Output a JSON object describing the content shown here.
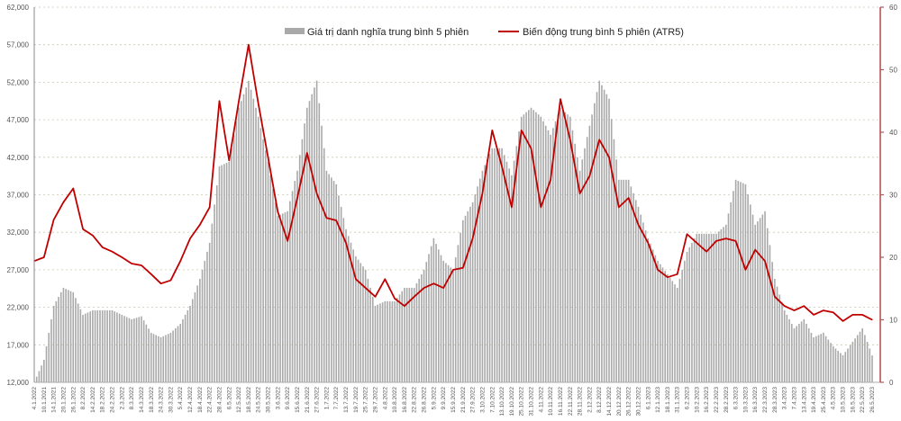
{
  "chart_data": {
    "type": "bar+line",
    "title": "",
    "legend": {
      "position": "top-center",
      "bar_label": "Giá trị danh nghĩa trung bình 5 phiên",
      "line_label": "Biến động trung bình 5 phiên (ATR5)"
    },
    "colors": {
      "bar": "#a9a9a9",
      "line": "#c00000",
      "right_axis": "#b5545a",
      "grid": "#c9c9b0"
    },
    "y_left": {
      "min": 12000,
      "max": 62000,
      "step": 5000,
      "ticks": [
        "12,000",
        "17,000",
        "22,000",
        "27,000",
        "32,000",
        "37,000",
        "42,000",
        "47,000",
        "52,000",
        "57,000",
        "62,000"
      ]
    },
    "y_right": {
      "min": 0,
      "max": 60,
      "step": 10,
      "ticks": [
        "0",
        "10",
        "20",
        "30",
        "40",
        "50",
        "60"
      ]
    },
    "grid": true,
    "categories": [
      "4.1.2022",
      "10.1.2021",
      "14.1.2021",
      "20.1.2022",
      "26.1.2022",
      "8.2.2022",
      "14.2.2022",
      "18.2.2022",
      "24.2.2022",
      "2.3.2022",
      "8.3.2022",
      "14.3.2022",
      "18.3.2022",
      "24.3.2022",
      "30.3.2022",
      "5.4.2022",
      "12.4.2022",
      "18.4.2022",
      "22.4.2022",
      "28.4.2022",
      "6.5.2022",
      "12.5.2022",
      "18.5.2022",
      "24.5.2022",
      "30.5.2022",
      "3.6.2022",
      "9.6.2022",
      "15.6.2022",
      "21.6.2022",
      "27.6.2022",
      "1.7.2022",
      "7.7.2022",
      "13.7.2022",
      "19.7.2022",
      "25.7.2022",
      "29.7.2022",
      "4.8.2022",
      "10.8.2022",
      "16.8.2022",
      "22.8.2022",
      "26.8.2022",
      "5.9.2022",
      "9.9.2022",
      "15.9.2022",
      "21.9.2022",
      "27.9.2022",
      "3.10.2022",
      "7.10.2022",
      "13.10.2022",
      "19.10.2022",
      "25.10.2022",
      "31.10.2022",
      "4.11.2022",
      "10.11.2022",
      "16.11.2022",
      "22.11.2022",
      "28.11.2022",
      "2.12.2022",
      "8.12.2022",
      "14.12.2022",
      "20.12.2022",
      "26.12.2022",
      "30.12.2022",
      "6.1.2023",
      "12.1.2023",
      "18.1.2023",
      "31.1.2023",
      "6.2.2023",
      "10.2.2023",
      "16.2.2023",
      "22.2.2023",
      "28.2.2023",
      "6.3.2023",
      "10.3.2023",
      "16.3.2023",
      "22.3.2023",
      "28.3.2023",
      "3.4.2023",
      "7.4.2023",
      "13.4.2023",
      "19.4.2023",
      "25.4.2023",
      "4.5.2023",
      "10.5.2023",
      "16.5.2023",
      "22.5.2023",
      "26.5.2023"
    ],
    "series": [
      {
        "name": "Giá trị danh nghĩa trung bình 5 phiên",
        "type": "bar",
        "axis": "left",
        "values": [
          12000,
          15000,
          22200,
          24600,
          24000,
          21000,
          21600,
          21600,
          21600,
          21000,
          20400,
          20800,
          18600,
          18000,
          18600,
          19800,
          22200,
          25800,
          30600,
          40800,
          41400,
          48600,
          52200,
          47400,
          41400,
          34200,
          34800,
          40200,
          48600,
          52200,
          40200,
          38400,
          32400,
          28800,
          27000,
          22200,
          22800,
          22800,
          24600,
          24600,
          27000,
          31200,
          28200,
          27000,
          33600,
          36000,
          40200,
          43200,
          43200,
          39600,
          47400,
          48600,
          47400,
          45000,
          48600,
          47400,
          40200,
          46200,
          52200,
          49800,
          39000,
          39000,
          35400,
          31200,
          28200,
          26400,
          24600,
          29400,
          31800,
          31800,
          31800,
          33000,
          39000,
          38400,
          33000,
          34800,
          25800,
          21600,
          19200,
          20400,
          18000,
          18600,
          16800,
          15600,
          17400,
          19200,
          15600
        ]
      },
      {
        "name": "Biến động trung bình 5 phiên (ATR5)",
        "type": "line",
        "axis": "right",
        "values": [
          19.4,
          20,
          26,
          28.8,
          31,
          24.5,
          23.5,
          21.6,
          20.9,
          20,
          19,
          18.7,
          17.3,
          15.8,
          16.3,
          19.4,
          23,
          25.2,
          28,
          45,
          35.5,
          45,
          54,
          44.6,
          36,
          27.3,
          22.6,
          29.5,
          36.7,
          30.2,
          26.3,
          25.9,
          22.3,
          16.5,
          15.1,
          13.7,
          16.5,
          13.4,
          12.2,
          13.7,
          15.1,
          15.8,
          15.1,
          18,
          18.3,
          23,
          30.2,
          40.3,
          34.5,
          28,
          40.3,
          37.4,
          28,
          32.4,
          45.3,
          38.8,
          30.2,
          33,
          38.8,
          36,
          28,
          29.5,
          25.2,
          22.3,
          18,
          16.8,
          17.3,
          23.7,
          22.3,
          20.9,
          22.6,
          23,
          22.6,
          18,
          21.2,
          19.4,
          13.7,
          12.2,
          11.5,
          12.2,
          10.8,
          11.5,
          11.2,
          9.8,
          10.8,
          10.8,
          10
        ]
      }
    ]
  }
}
